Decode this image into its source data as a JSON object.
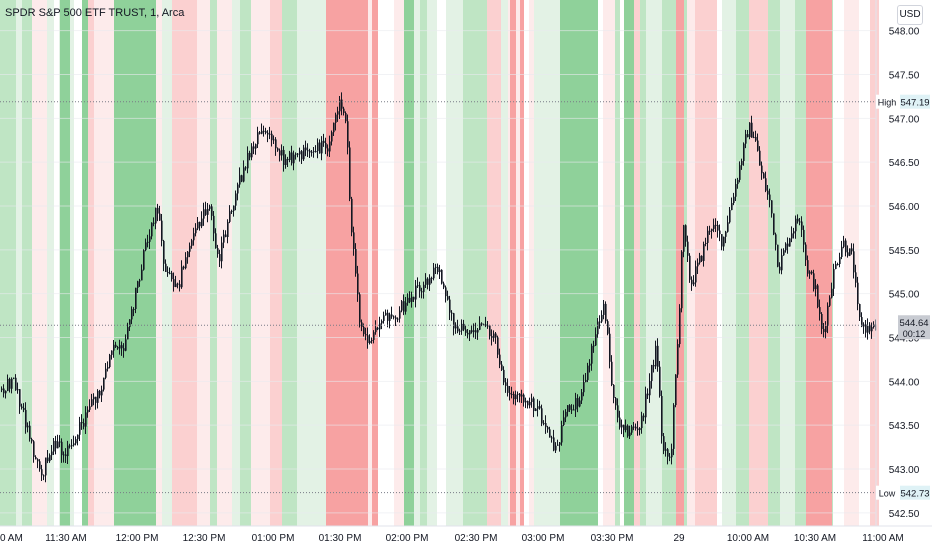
{
  "header": {
    "title": "SPDR S&P 500 ETF TRUST, 1, Arca",
    "currency": "USD"
  },
  "chart_data": {
    "type": "candlestick",
    "ylim": [
      542.35,
      548.35
    ],
    "y_ticks": [
      "548.00",
      "547.50",
      "547.00",
      "546.50",
      "546.00",
      "545.50",
      "545.00",
      "544.50",
      "544.00",
      "543.50",
      "543.00",
      "542.50"
    ],
    "x_ticks": [
      "0 AM",
      "11:30 AM",
      "12:00 PM",
      "12:30 PM",
      "01:00 PM",
      "01:30 PM",
      "02:00 PM",
      "02:30 PM",
      "03:00 PM",
      "03:30 PM",
      "29",
      "10:00 AM",
      "10:30 AM",
      "11:00 AM"
    ],
    "levels": {
      "high": {
        "label": "High",
        "value": "547.19"
      },
      "low": {
        "label": "Low",
        "value": "542.73"
      },
      "current": {
        "value": "544.64",
        "countdown": "00:12"
      }
    },
    "price_path": [
      [
        0,
        543.9
      ],
      [
        14,
        544.0
      ],
      [
        28,
        543.4
      ],
      [
        40,
        542.9
      ],
      [
        52,
        543.3
      ],
      [
        64,
        543.2
      ],
      [
        80,
        543.5
      ],
      [
        100,
        543.9
      ],
      [
        113,
        544.4
      ],
      [
        124,
        544.4
      ],
      [
        135,
        545.0
      ],
      [
        148,
        545.7
      ],
      [
        158,
        546.0
      ],
      [
        164,
        545.2
      ],
      [
        178,
        545.1
      ],
      [
        192,
        545.7
      ],
      [
        208,
        546.0
      ],
      [
        218,
        545.4
      ],
      [
        236,
        546.2
      ],
      [
        256,
        546.8
      ],
      [
        270,
        546.8
      ],
      [
        284,
        546.5
      ],
      [
        300,
        546.6
      ],
      [
        328,
        546.7
      ],
      [
        338,
        547.2
      ],
      [
        346,
        546.9
      ],
      [
        350,
        545.9
      ],
      [
        356,
        545.0
      ],
      [
        362,
        544.5
      ],
      [
        370,
        544.5
      ],
      [
        380,
        544.7
      ],
      [
        398,
        544.8
      ],
      [
        412,
        545.0
      ],
      [
        426,
        545.1
      ],
      [
        436,
        545.3
      ],
      [
        444,
        545.1
      ],
      [
        454,
        544.6
      ],
      [
        470,
        544.6
      ],
      [
        484,
        544.7
      ],
      [
        496,
        544.4
      ],
      [
        506,
        543.9
      ],
      [
        520,
        543.8
      ],
      [
        536,
        543.7
      ],
      [
        550,
        543.3
      ],
      [
        556,
        543.2
      ],
      [
        566,
        543.7
      ],
      [
        580,
        543.8
      ],
      [
        596,
        544.6
      ],
      [
        604,
        544.9
      ],
      [
        612,
        543.8
      ],
      [
        622,
        543.4
      ],
      [
        640,
        543.5
      ],
      [
        656,
        544.4
      ],
      [
        662,
        543.2
      ],
      [
        670,
        543.1
      ],
      [
        678,
        544.6
      ],
      [
        682,
        545.8
      ],
      [
        690,
        545.1
      ],
      [
        700,
        545.4
      ],
      [
        710,
        545.8
      ],
      [
        722,
        545.6
      ],
      [
        734,
        546.2
      ],
      [
        748,
        546.9
      ],
      [
        754,
        546.8
      ],
      [
        760,
        546.4
      ],
      [
        770,
        546.0
      ],
      [
        778,
        545.3
      ],
      [
        790,
        545.7
      ],
      [
        800,
        545.9
      ],
      [
        806,
        545.3
      ],
      [
        814,
        545.1
      ],
      [
        822,
        544.5
      ],
      [
        832,
        545.2
      ],
      [
        842,
        545.6
      ],
      [
        852,
        545.4
      ],
      [
        858,
        544.7
      ],
      [
        866,
        544.6
      ],
      [
        876,
        544.6
      ]
    ]
  },
  "colors": {
    "bg": "#ffffff",
    "grid": "#e8eaef",
    "candle": "#131722",
    "axis_text": "#131722",
    "band_green_strong": "#8fd19a",
    "band_green_mid": "#bfe5c4",
    "band_green_light": "#e3f2e5",
    "band_red_strong": "#f7a2a2",
    "band_red_mid": "#fbd0d0",
    "band_red_light": "#fdebeb"
  }
}
